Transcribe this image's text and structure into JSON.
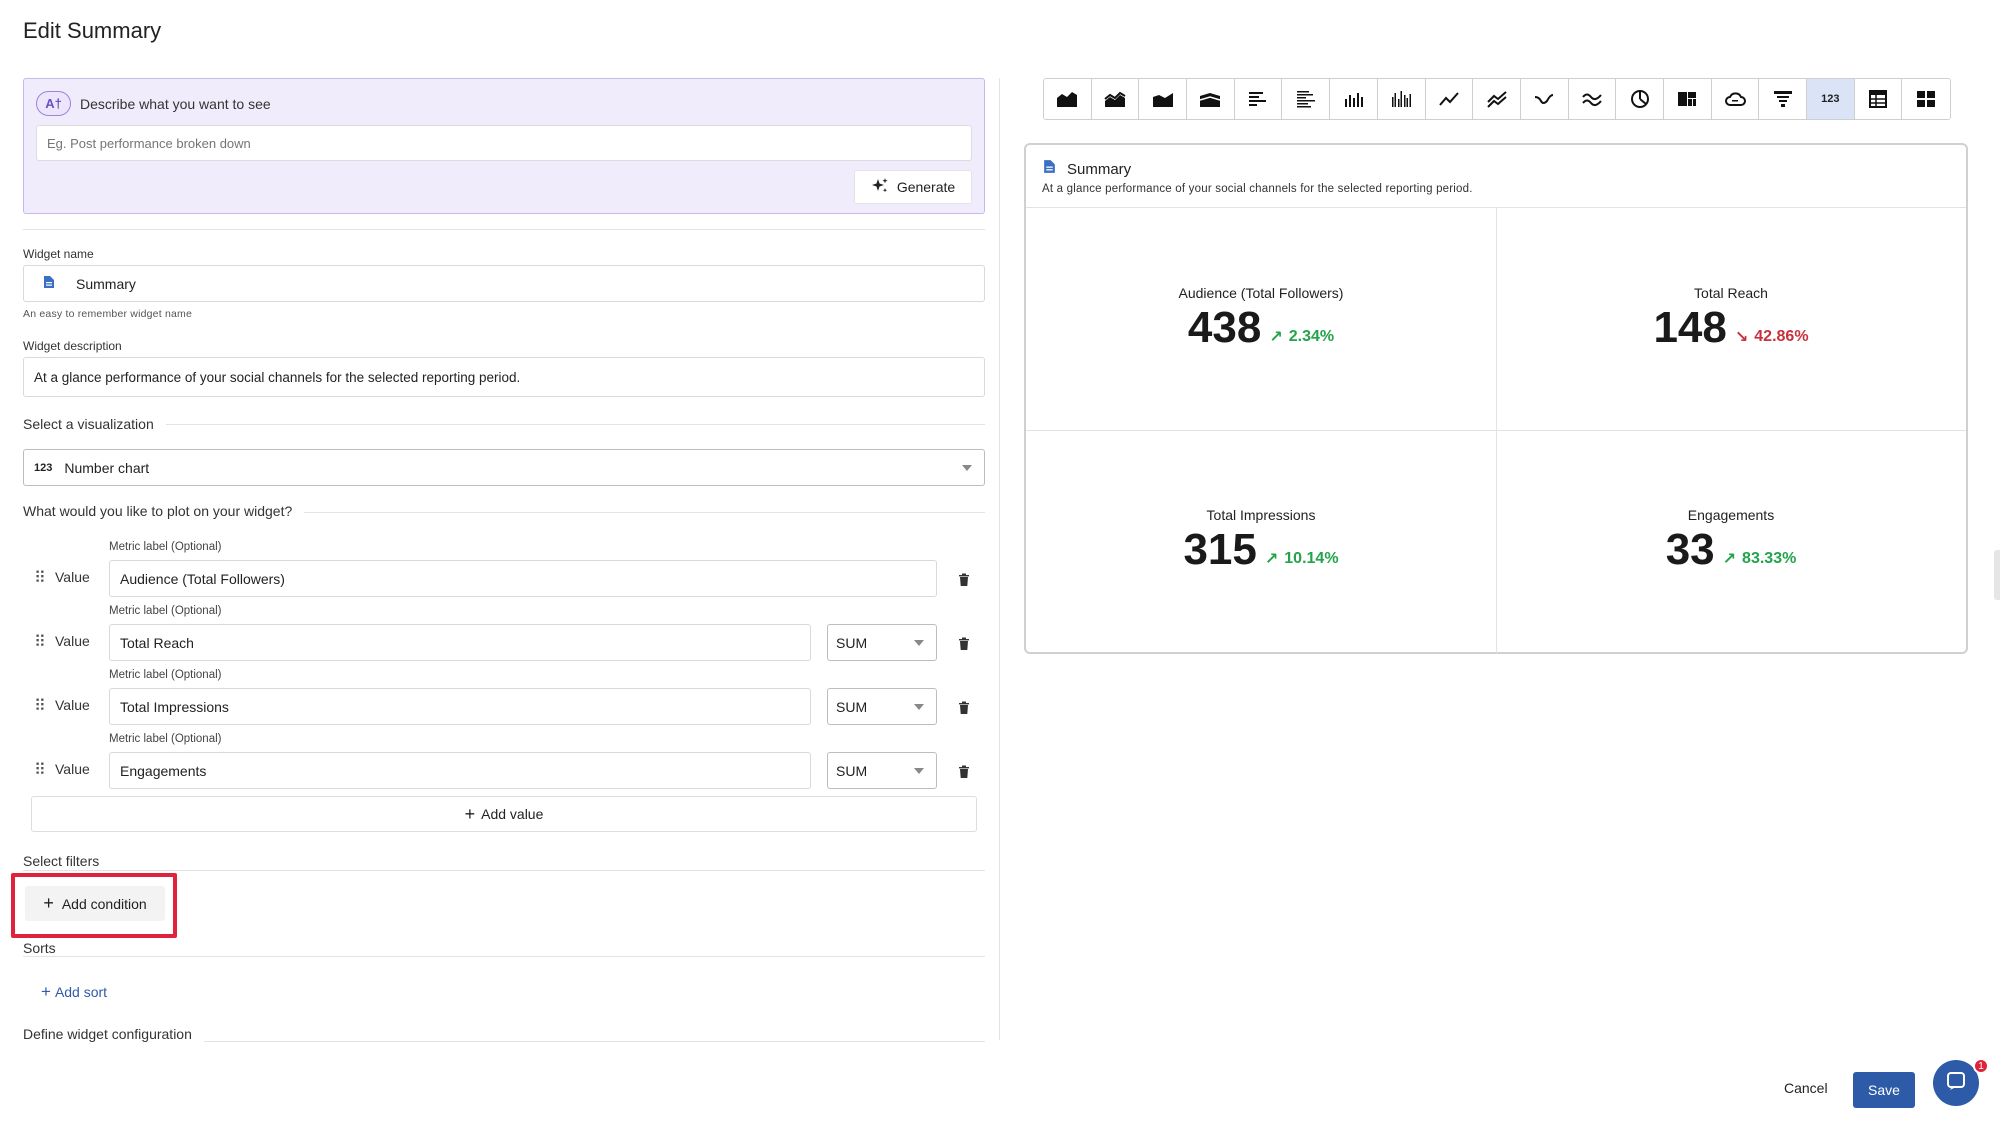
{
  "page": {
    "title": "Edit Summary"
  },
  "ai": {
    "badge": "A†",
    "title": "Describe what you want to see",
    "placeholder": "Eg. Post performance broken down",
    "generate_label": "Generate"
  },
  "widget": {
    "name_label": "Widget name",
    "name_value": "Summary",
    "name_hint": "An easy to remember widget name",
    "desc_label": "Widget description",
    "desc_value": "At a glance performance of your social channels for the selected reporting period."
  },
  "visualization": {
    "section_title": "Select a visualization",
    "selected_icon_text": "123",
    "selected": "Number chart"
  },
  "plot": {
    "section_title": "What would you like to plot on your widget?",
    "rows": [
      {
        "value_label": "Value",
        "metric_label": "Metric label (Optional)",
        "metric": "Audience (Total Followers)",
        "agg": ""
      },
      {
        "value_label": "Value",
        "metric_label": "Metric label (Optional)",
        "metric": "Total Reach",
        "agg": "SUM"
      },
      {
        "value_label": "Value",
        "metric_label": "Metric label (Optional)",
        "metric": "Total Impressions",
        "agg": "SUM"
      },
      {
        "value_label": "Value",
        "metric_label": "Metric label (Optional)",
        "metric": "Engagements",
        "agg": "SUM"
      }
    ],
    "add_value_label": "Add value"
  },
  "filters": {
    "section_title": "Select filters",
    "add_condition_label": "Add condition"
  },
  "sorts": {
    "section_title": "Sorts",
    "add_sort_label": "Add sort"
  },
  "config": {
    "section_title": "Define widget configuration"
  },
  "toolbar": {
    "icons": [
      "area-chart-icon",
      "stacked-area-icon",
      "area-step-icon",
      "area-stream-icon",
      "bar-horizontal-icon",
      "bar-horizontal-stacked-icon",
      "column-chart-icon",
      "column-grouped-icon",
      "line-chart-icon",
      "multi-line-icon",
      "spline-icon",
      "wave-line-icon",
      "pie-chart-icon",
      "treemap-icon",
      "word-cloud-icon",
      "funnel-table-icon",
      "number-chart-icon",
      "pivot-table-icon",
      "grid-table-icon"
    ],
    "active_text": "123"
  },
  "preview": {
    "title": "Summary",
    "description": "At a glance performance of your social channels for the selected reporting period.",
    "cells": [
      {
        "label": "Audience (Total Followers)",
        "value": "438",
        "arrow": "↗",
        "change": "2.34%",
        "trend": "up"
      },
      {
        "label": "Total Reach",
        "value": "148",
        "arrow": "↘",
        "change": "42.86%",
        "trend": "down"
      },
      {
        "label": "Total Impressions",
        "value": "315",
        "arrow": "↗",
        "change": "10.14%",
        "trend": "up"
      },
      {
        "label": "Engagements",
        "value": "33",
        "arrow": "↗",
        "change": "83.33%",
        "trend": "up"
      }
    ]
  },
  "footer": {
    "cancel_label": "Cancel",
    "save_label": "Save",
    "chat_badge": "1"
  },
  "colors": {
    "accent": "#2d5ba7",
    "up": "#23a34a",
    "down": "#c7323c",
    "highlight": "#e0233d",
    "ai_bg": "#f1ecfb"
  }
}
